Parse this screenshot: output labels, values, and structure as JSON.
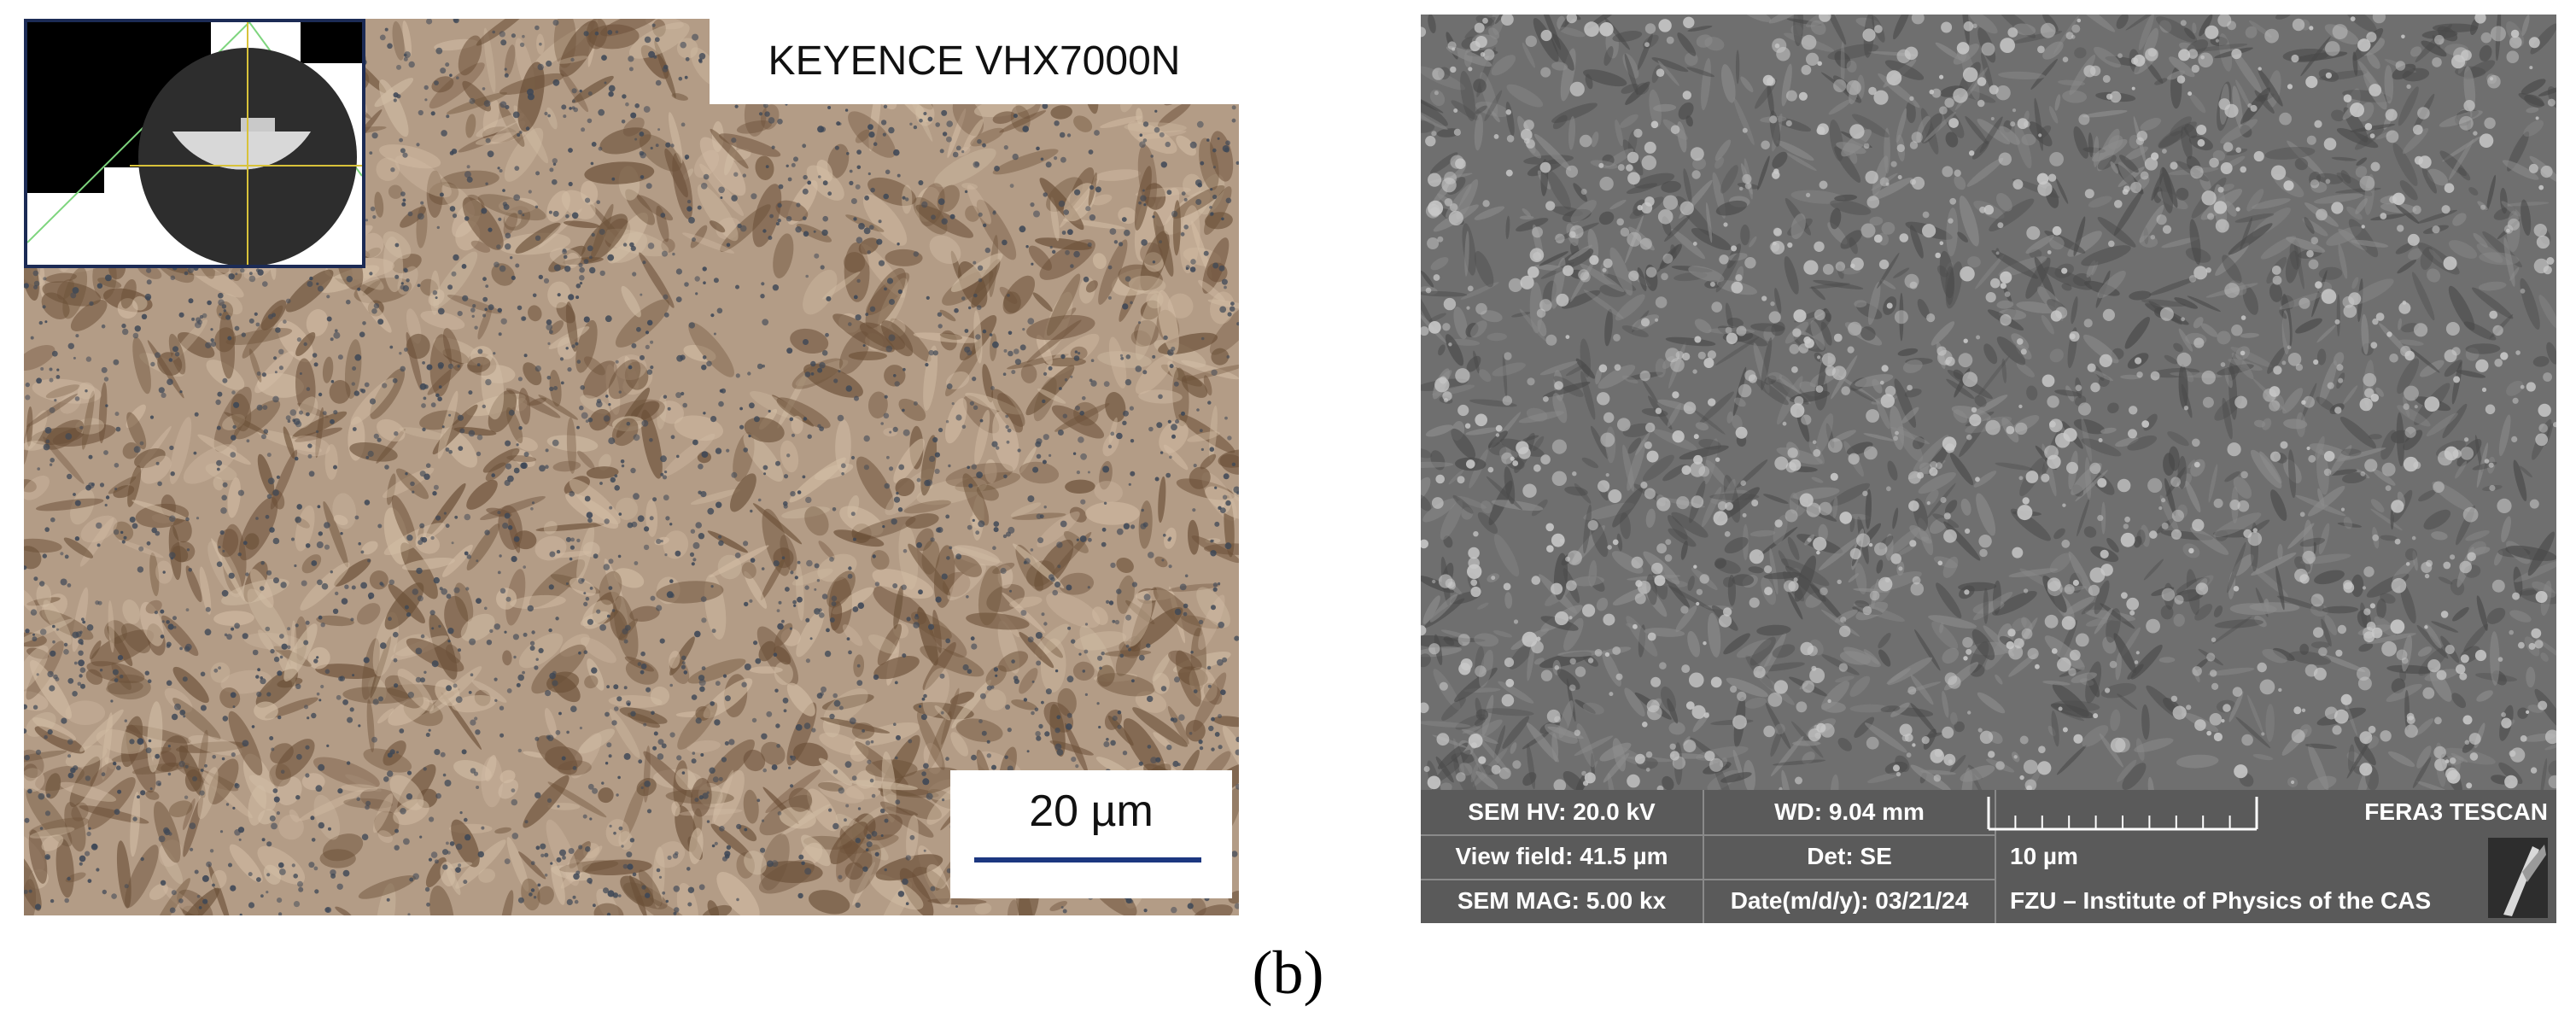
{
  "optical": {
    "instrument_label": "KEYENCE VHX7000N",
    "scale_label": "20 µm",
    "colors": {
      "background": "#b39c86",
      "dark_phase": "#6b5038",
      "bar": "#1c3780",
      "inset_border": "#1c2b55"
    }
  },
  "sem": {
    "hv": "SEM HV: 20.0 kV",
    "wd": "WD: 9.04 mm",
    "brand": "FERA3 TESCAN",
    "view_field": "View field: 41.5 µm",
    "det": "Det: SE",
    "scale_label": "10 µm",
    "mag": "SEM MAG: 5.00 kx",
    "date": "Date(m/d/y): 03/21/24",
    "institute": "FZU – Institute of Physics of the CAS"
  },
  "caption": "(b)"
}
